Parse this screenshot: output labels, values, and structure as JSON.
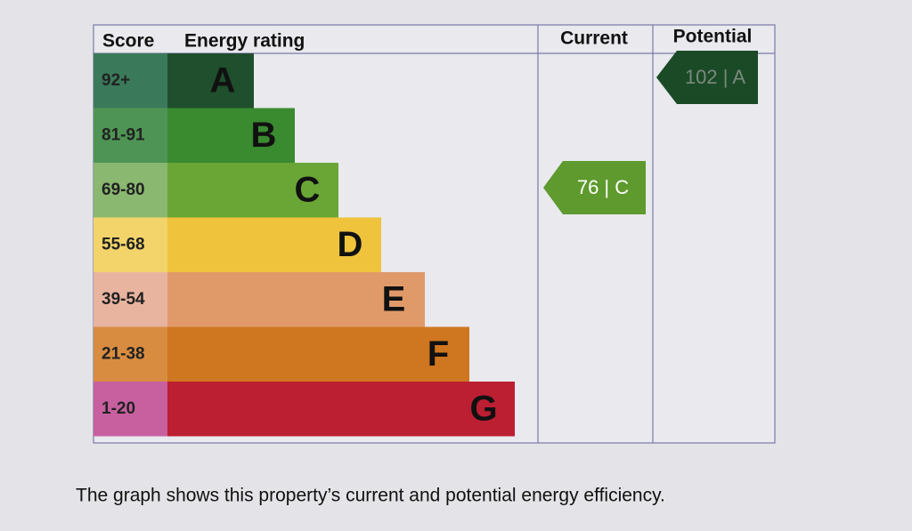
{
  "header": {
    "score": "Score",
    "energy_rating": "Energy rating",
    "current": "Current",
    "potential": "Potential"
  },
  "rows": [
    {
      "score": "92+",
      "letter": "A"
    },
    {
      "score": "81-91",
      "letter": "B"
    },
    {
      "score": "69-80",
      "letter": "C"
    },
    {
      "score": "55-68",
      "letter": "D"
    },
    {
      "score": "39-54",
      "letter": "E"
    },
    {
      "score": "21-38",
      "letter": "F"
    },
    {
      "score": "1-20",
      "letter": "G"
    }
  ],
  "current": {
    "label": "76 | C"
  },
  "potential": {
    "label": "102 | A"
  },
  "caption": "The graph shows this property’s current and potential energy efficiency."
}
